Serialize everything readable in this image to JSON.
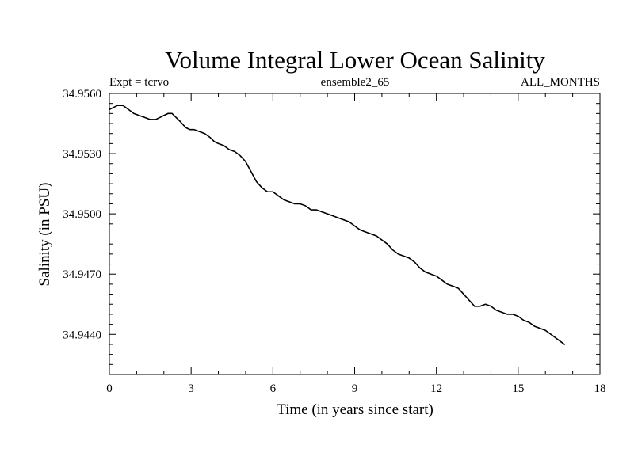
{
  "chart_data": {
    "type": "line",
    "title": "Volume Integral Lower Ocean Salinity",
    "subtitle_left": "Expt = tcrvo",
    "subtitle_center": "ensemble2_65",
    "subtitle_right": "ALL_MONTHS",
    "xlabel": "Time (in years since start)",
    "ylabel": "Salinity (in PSU)",
    "xlim": [
      0,
      18
    ],
    "ylim": [
      34.942,
      34.956
    ],
    "xticks": [
      0,
      3,
      6,
      9,
      12,
      15,
      18
    ],
    "xtick_labels": [
      "0",
      "3",
      "6",
      "9",
      "12",
      "15",
      "18"
    ],
    "yticks": [
      34.944,
      34.947,
      34.95,
      34.953,
      34.956
    ],
    "ytick_labels": [
      "34.9440",
      "34.9470",
      "34.9500",
      "34.9530",
      "34.9560"
    ],
    "grid": false,
    "series": [
      {
        "name": "Volume Integral Lower Ocean Salinity",
        "color": "#000000",
        "x": [
          0.0,
          0.3,
          0.5,
          0.7,
          0.9,
          1.1,
          1.3,
          1.5,
          1.7,
          1.85,
          2.0,
          2.15,
          2.3,
          2.45,
          2.6,
          2.8,
          2.95,
          3.1,
          3.3,
          3.5,
          3.7,
          3.85,
          4.0,
          4.2,
          4.4,
          4.6,
          4.8,
          5.0,
          5.2,
          5.4,
          5.6,
          5.8,
          6.0,
          6.2,
          6.4,
          6.6,
          6.8,
          7.0,
          7.2,
          7.4,
          7.6,
          7.8,
          8.0,
          8.2,
          8.4,
          8.6,
          8.8,
          9.0,
          9.2,
          9.4,
          9.6,
          9.8,
          10.0,
          10.2,
          10.4,
          10.6,
          10.8,
          11.0,
          11.2,
          11.4,
          11.6,
          11.8,
          12.0,
          12.2,
          12.4,
          12.6,
          12.8,
          13.0,
          13.2,
          13.4,
          13.6,
          13.8,
          14.0,
          14.2,
          14.4,
          14.6,
          14.8,
          15.0,
          15.2,
          15.4,
          15.6,
          15.8,
          16.0,
          16.2,
          16.4,
          16.6,
          16.7
        ],
        "values": [
          34.9552,
          34.9554,
          34.9554,
          34.9552,
          34.955,
          34.9549,
          34.9548,
          34.9547,
          34.9547,
          34.9548,
          34.9549,
          34.955,
          34.955,
          34.9548,
          34.9546,
          34.9543,
          34.9542,
          34.9542,
          34.9541,
          34.954,
          34.9538,
          34.9536,
          34.9535,
          34.9534,
          34.9532,
          34.9531,
          34.9529,
          34.9526,
          34.9521,
          34.9516,
          34.9513,
          34.9511,
          34.9511,
          34.9509,
          34.9507,
          34.9506,
          34.9505,
          34.9505,
          34.9504,
          34.9502,
          34.9502,
          34.9501,
          34.95,
          34.9499,
          34.9498,
          34.9497,
          34.9496,
          34.9494,
          34.9492,
          34.9491,
          34.949,
          34.9489,
          34.9487,
          34.9485,
          34.9482,
          34.948,
          34.9479,
          34.9478,
          34.9476,
          34.9473,
          34.9471,
          34.947,
          34.9469,
          34.9467,
          34.9465,
          34.9464,
          34.9463,
          34.946,
          34.9457,
          34.9454,
          34.9454,
          34.9455,
          34.9454,
          34.9452,
          34.9451,
          34.945,
          34.945,
          34.9449,
          34.9447,
          34.9446,
          34.9444,
          34.9443,
          34.9442,
          34.944,
          34.9438,
          34.9436,
          34.9435
        ]
      }
    ]
  }
}
